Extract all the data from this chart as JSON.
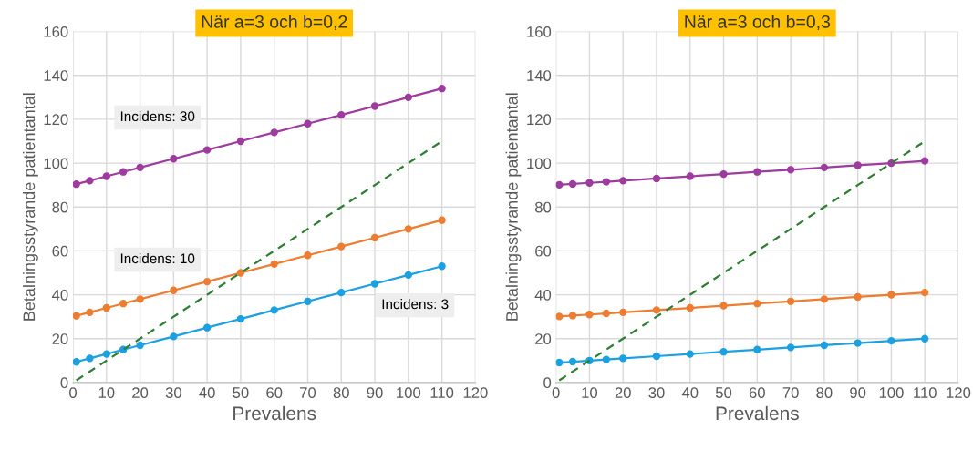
{
  "chart_data": [
    {
      "type": "line",
      "title": "När a=3 och b=0,2",
      "xlabel": "Prevalens",
      "ylabel": "Betalningsstyrande patientantal",
      "x": [
        1,
        5,
        10,
        15,
        20,
        30,
        40,
        50,
        60,
        70,
        80,
        90,
        100,
        110
      ],
      "series": [
        {
          "color": "#1ba1e2",
          "marker": "circle",
          "values": [
            9.4,
            11,
            13,
            15,
            17,
            21,
            25,
            29,
            33,
            37,
            41,
            45,
            49,
            53
          ]
        },
        {
          "color": "#ed7d31",
          "marker": "circle",
          "values": [
            30.4,
            32,
            34,
            36,
            38,
            42,
            46,
            50,
            54,
            58,
            62,
            66,
            70,
            74
          ]
        },
        {
          "color": "#9e3b9e",
          "marker": "circle",
          "values": [
            90.4,
            92,
            94,
            96,
            98,
            102,
            106,
            110,
            114,
            118,
            122,
            126,
            130,
            134
          ]
        },
        {
          "color": "#2e7d32",
          "marker": "none",
          "line_style": "dashed",
          "x": [
            1,
            10,
            20,
            30,
            40,
            50,
            60,
            70,
            80,
            90,
            100,
            110
          ],
          "values": [
            1,
            10,
            20,
            30,
            40,
            50,
            60,
            70,
            80,
            90,
            100,
            110
          ]
        }
      ],
      "annotations": [
        "Incidens: 30",
        "Incidens: 10",
        "Incidens: 3"
      ],
      "xlim": [
        0,
        120
      ],
      "xticks": [
        0,
        10,
        20,
        30,
        40,
        50,
        60,
        70,
        80,
        90,
        100,
        110,
        120
      ],
      "ylim": [
        0,
        160
      ],
      "yticks": [
        0,
        20,
        40,
        60,
        80,
        100,
        120,
        140,
        160
      ],
      "grid": true
    },
    {
      "type": "line",
      "title": "När a=3 och b=0,3",
      "xlabel": "Prevalens",
      "ylabel": "Betalningsstyrande patientantal",
      "x": [
        1,
        5,
        10,
        15,
        20,
        30,
        40,
        50,
        60,
        70,
        80,
        90,
        100,
        110
      ],
      "series": [
        {
          "color": "#1ba1e2",
          "marker": "circle",
          "values": [
            9.1,
            9.5,
            10,
            10.5,
            11,
            12,
            13,
            14,
            15,
            16,
            17,
            18,
            19,
            20
          ]
        },
        {
          "color": "#ed7d31",
          "marker": "circle",
          "values": [
            30.1,
            30.5,
            31,
            31.5,
            32,
            33,
            34,
            35,
            36,
            37,
            38,
            39,
            40,
            41
          ]
        },
        {
          "color": "#9e3b9e",
          "marker": "circle",
          "values": [
            90.1,
            90.5,
            91,
            91.5,
            92,
            93,
            94,
            95,
            96,
            97,
            98,
            99,
            100,
            101
          ]
        },
        {
          "color": "#2e7d32",
          "marker": "none",
          "line_style": "dashed",
          "x": [
            1,
            10,
            20,
            30,
            40,
            50,
            60,
            70,
            80,
            90,
            100,
            110
          ],
          "values": [
            1,
            10,
            20,
            30,
            40,
            50,
            60,
            70,
            80,
            90,
            100,
            110
          ]
        }
      ],
      "xlim": [
        0,
        120
      ],
      "xticks": [
        0,
        10,
        20,
        30,
        40,
        50,
        60,
        70,
        80,
        90,
        100,
        110,
        120
      ],
      "ylim": [
        0,
        160
      ],
      "yticks": [
        0,
        20,
        40,
        60,
        80,
        100,
        120,
        140,
        160
      ],
      "grid": true
    }
  ]
}
